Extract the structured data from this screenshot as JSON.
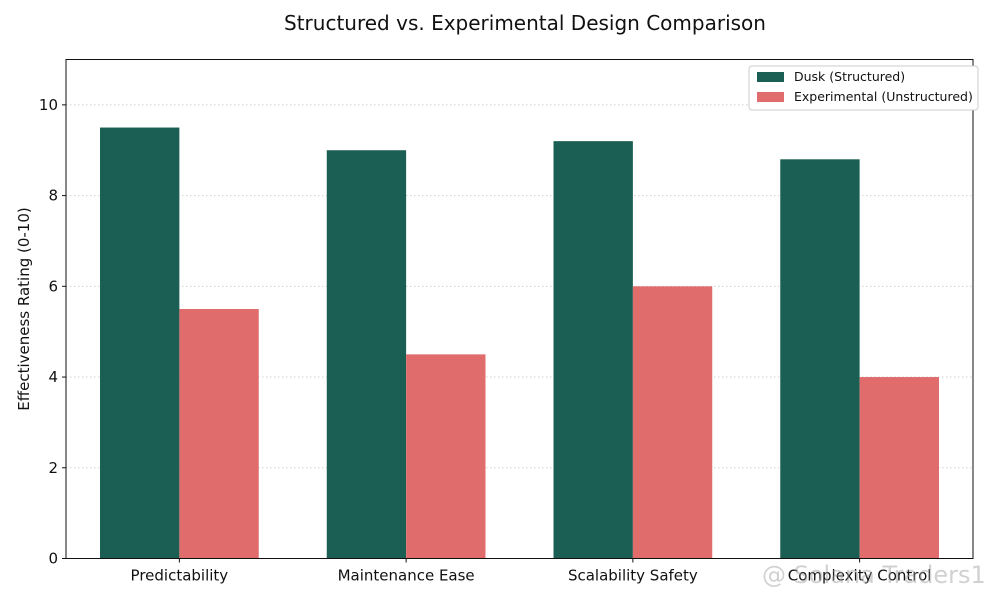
{
  "chart_data": {
    "type": "bar",
    "title": "Structured vs. Experimental Design Comparison",
    "xlabel": "",
    "ylabel": "Effectiveness Rating (0-10)",
    "categories": [
      "Predictability",
      "Maintenance Ease",
      "Scalability Safety",
      "Complexity Control"
    ],
    "series": [
      {
        "name": "Dusk (Structured)",
        "color": "#1b5e54",
        "values": [
          9.5,
          9.0,
          9.2,
          8.8
        ]
      },
      {
        "name": "Experimental (Unstructured)",
        "color": "#e06c6c",
        "values": [
          5.5,
          4.5,
          6.0,
          4.0
        ]
      }
    ],
    "ylim": [
      0,
      11
    ],
    "yticks": [
      0,
      2,
      4,
      6,
      8,
      10
    ],
    "grid": "y-dotted",
    "legend": "top-right"
  },
  "watermark": {
    "text": "@ Solana Traders1"
  }
}
